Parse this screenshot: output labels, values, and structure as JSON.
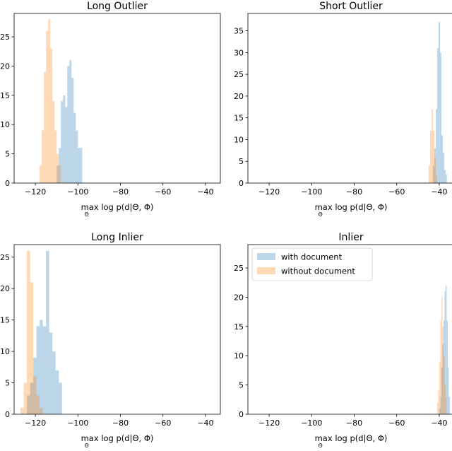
{
  "colors": {
    "with": "#1f77b4",
    "without": "#ff7f0e",
    "alpha": 0.3
  },
  "legend": {
    "with_label": "with document",
    "without_label": "without document",
    "placement": "upper-left"
  },
  "chart_data": [
    {
      "type": "bar",
      "title": "Long Outlier",
      "xlabel": {
        "main": "max  log  p(d|Θ, Φ)",
        "sub": "Θ"
      },
      "xlim": [
        -130,
        -33
      ],
      "ylim": [
        0,
        29
      ],
      "xticks": [
        -120,
        -100,
        -80,
        -60,
        -40
      ],
      "yticks": [
        0,
        5,
        10,
        15,
        20,
        25
      ],
      "series": [
        {
          "key": "with",
          "bins": [
            [
              -110,
              -109,
              3
            ],
            [
              -109,
              -108,
              6
            ],
            [
              -108,
              -107,
              14
            ],
            [
              -107,
              -106,
              15
            ],
            [
              -106,
              -105,
              13
            ],
            [
              -105,
              -104,
              20
            ],
            [
              -104,
              -103,
              21
            ],
            [
              -103,
              -102,
              18
            ],
            [
              -102,
              -101,
              12
            ],
            [
              -101,
              -100,
              9
            ],
            [
              -100,
              -99,
              6
            ],
            [
              -99,
              -98,
              6
            ]
          ]
        },
        {
          "key": "without",
          "bins": [
            [
              -118,
              -117,
              3
            ],
            [
              -117,
              -116,
              9
            ],
            [
              -116,
              -115,
              19
            ],
            [
              -115,
              -114,
              26
            ],
            [
              -114,
              -113,
              28
            ],
            [
              -113,
              -112,
              23
            ],
            [
              -112,
              -111,
              14
            ],
            [
              -111,
              -110,
              9
            ],
            [
              -110,
              -109,
              5
            ],
            [
              -109,
              -108,
              3
            ]
          ]
        }
      ]
    },
    {
      "type": "bar",
      "title": "Short Outlier",
      "xlabel": {
        "main": "max  log  p(d|Θ, Φ)",
        "sub": "Θ"
      },
      "xlim": [
        -130,
        -33
      ],
      "ylim": [
        0,
        39
      ],
      "xticks": [
        -120,
        -100,
        -80,
        -60,
        -40
      ],
      "yticks": [
        0,
        5,
        10,
        15,
        20,
        25,
        30,
        35
      ],
      "series": [
        {
          "key": "with",
          "bins": [
            [
              -43,
              -42.3,
              4
            ],
            [
              -42.3,
              -41.6,
              8
            ],
            [
              -41.6,
              -41,
              17
            ],
            [
              -41,
              -40.3,
              31
            ],
            [
              -40.3,
              -39.6,
              37
            ],
            [
              -39.6,
              -39,
              30
            ],
            [
              -39,
              -38.3,
              11
            ],
            [
              -38.3,
              -37.6,
              7
            ],
            [
              -37.6,
              -37,
              3
            ],
            [
              -37,
              -36.4,
              2
            ]
          ]
        },
        {
          "key": "without",
          "bins": [
            [
              -45,
              -44.3,
              4
            ],
            [
              -44.3,
              -43.6,
              12
            ],
            [
              -43.6,
              -43,
              17
            ],
            [
              -43,
              -42.3,
              12
            ],
            [
              -42.3,
              -41.6,
              6
            ],
            [
              -41.6,
              -41,
              2
            ]
          ]
        }
      ]
    },
    {
      "type": "bar",
      "title": "Long Inlier",
      "xlabel": {
        "main": "max  log  p(d|Θ, Φ)",
        "sub": "Θ"
      },
      "xlim": [
        -130,
        -33
      ],
      "ylim": [
        0,
        27
      ],
      "xticks": [
        -120,
        -100,
        -80,
        -60,
        -40
      ],
      "yticks": [
        0,
        5,
        10,
        15,
        20,
        25
      ],
      "series": [
        {
          "key": "with",
          "bins": [
            [
              -124,
              -122.5,
              3
            ],
            [
              -122.5,
              -121,
              5
            ],
            [
              -121,
              -119.5,
              9
            ],
            [
              -119.5,
              -118,
              14
            ],
            [
              -118,
              -116.5,
              15
            ],
            [
              -116.5,
              -115,
              14
            ],
            [
              -115,
              -113.5,
              26
            ],
            [
              -113.5,
              -112,
              13
            ],
            [
              -112,
              -110.5,
              10
            ],
            [
              -110.5,
              -109,
              7
            ],
            [
              -109,
              -107.5,
              5
            ]
          ]
        },
        {
          "key": "without",
          "bins": [
            [
              -127,
              -125.5,
              1
            ],
            [
              -125.5,
              -124,
              5
            ],
            [
              -124,
              -122.5,
              26
            ],
            [
              -122.5,
              -121,
              21
            ],
            [
              -121,
              -119.5,
              6
            ],
            [
              -119.5,
              -118,
              3
            ],
            [
              -118,
              -116.5,
              1
            ]
          ]
        }
      ]
    },
    {
      "type": "bar",
      "title": "Inlier",
      "xlabel": {
        "main": "max  log  p(d|Θ, Φ)",
        "sub": "Θ"
      },
      "xlim": [
        -130,
        -33
      ],
      "ylim": [
        0,
        29
      ],
      "xticks": [
        -120,
        -100,
        -80,
        -60,
        -40
      ],
      "yticks": [
        0,
        5,
        10,
        15,
        20,
        25
      ],
      "series": [
        {
          "key": "with",
          "bins": [
            [
              -40,
              -39.5,
              1
            ],
            [
              -39.5,
              -39,
              3
            ],
            [
              -39,
              -38.5,
              8
            ],
            [
              -38.5,
              -38,
              12
            ],
            [
              -38,
              -37.5,
              16
            ],
            [
              -37.5,
              -37,
              21
            ],
            [
              -37,
              -36.5,
              22
            ],
            [
              -36.5,
              -36,
              16
            ],
            [
              -36,
              -35.5,
              8
            ],
            [
              -35.5,
              -35,
              3
            ]
          ]
        },
        {
          "key": "without",
          "bins": [
            [
              -41,
              -40.5,
              2
            ],
            [
              -40.5,
              -40,
              4
            ],
            [
              -40,
              -39.5,
              9
            ],
            [
              -39.5,
              -39,
              16
            ],
            [
              -39,
              -38.5,
              20
            ],
            [
              -38.5,
              -38,
              15
            ],
            [
              -38,
              -37.5,
              10
            ],
            [
              -37.5,
              -37,
              5
            ],
            [
              -37,
              -36.5,
              3
            ]
          ]
        }
      ]
    }
  ]
}
